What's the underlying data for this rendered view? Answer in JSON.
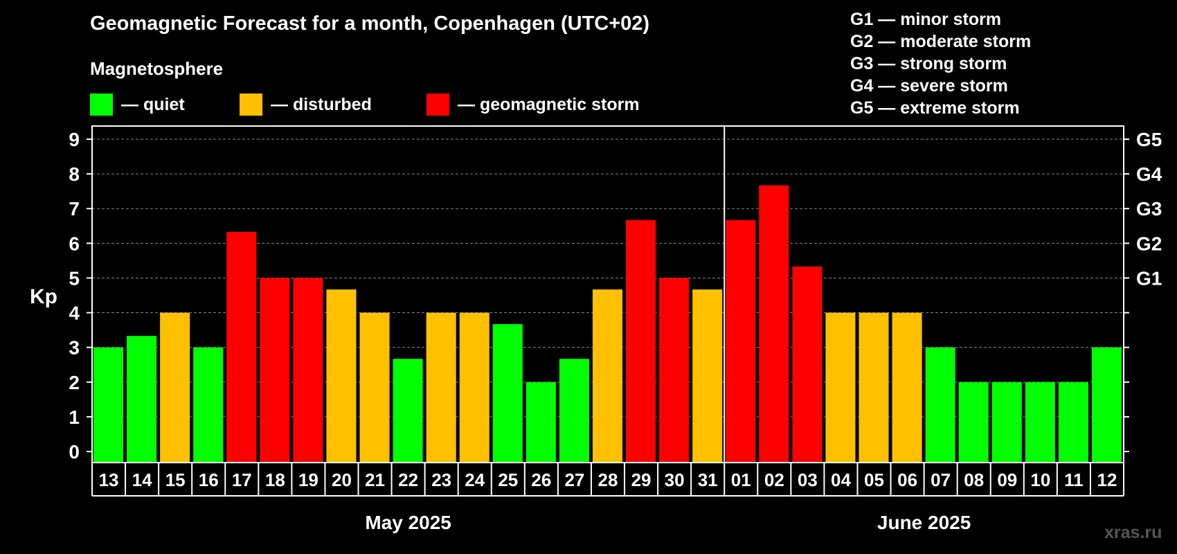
{
  "title": "Geomagnetic Forecast for a month, Copenhagen (UTC+02)",
  "subtitle": "Magnetosphere",
  "legend": [
    {
      "label": "— quiet",
      "color": "#00ff00"
    },
    {
      "label": "— disturbed",
      "color": "#ffc000"
    },
    {
      "label": "— geomagnetic storm",
      "color": "#ff0000"
    }
  ],
  "storm_legend": [
    "G1 — minor storm",
    "G2 — moderate storm",
    "G3 — strong storm",
    "G4 — severe storm",
    "G5 — extreme storm"
  ],
  "watermark": "xras.ru",
  "chart_data": {
    "type": "bar",
    "ylabel": "Kp",
    "ylim": [
      0,
      9
    ],
    "yticks": [
      0,
      1,
      2,
      3,
      4,
      5,
      6,
      7,
      8,
      9
    ],
    "right_axis": [
      {
        "value": 5,
        "label": "G1"
      },
      {
        "value": 6,
        "label": "G2"
      },
      {
        "value": 7,
        "label": "G3"
      },
      {
        "value": 8,
        "label": "G4"
      },
      {
        "value": 9,
        "label": "G5"
      }
    ],
    "grid": "horizontal dashed",
    "categories": [
      "13",
      "14",
      "15",
      "16",
      "17",
      "18",
      "19",
      "20",
      "21",
      "22",
      "23",
      "24",
      "25",
      "26",
      "27",
      "28",
      "29",
      "30",
      "31",
      "01",
      "02",
      "03",
      "04",
      "05",
      "06",
      "07",
      "08",
      "09",
      "10",
      "11",
      "12"
    ],
    "values": [
      3,
      3.33,
      4,
      3,
      6.33,
      5,
      5,
      4.67,
      4,
      2.67,
      4,
      4,
      3.67,
      2,
      2.67,
      4.67,
      6.67,
      5,
      4.67,
      6.67,
      7.67,
      5.33,
      4,
      4,
      4,
      3,
      2,
      2,
      2,
      2,
      3
    ],
    "colors": [
      "#00ff00",
      "#00ff00",
      "#ffc000",
      "#00ff00",
      "#ff0000",
      "#ff0000",
      "#ff0000",
      "#ffc000",
      "#ffc000",
      "#00ff00",
      "#ffc000",
      "#ffc000",
      "#00ff00",
      "#00ff00",
      "#00ff00",
      "#ffc000",
      "#ff0000",
      "#ff0000",
      "#ffc000",
      "#ff0000",
      "#ff0000",
      "#ff0000",
      "#ffc000",
      "#ffc000",
      "#ffc000",
      "#00ff00",
      "#00ff00",
      "#00ff00",
      "#00ff00",
      "#00ff00",
      "#00ff00"
    ],
    "month_groups": [
      {
        "label": "May 2025",
        "count": 19
      },
      {
        "label": "June 2025",
        "count": 12
      }
    ]
  }
}
